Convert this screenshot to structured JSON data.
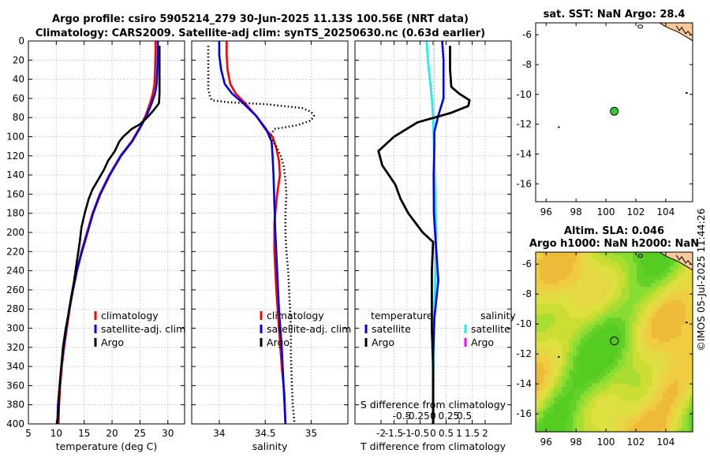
{
  "header": {
    "title1": "Argo profile: csiro 5905214_279 30-Jun-2025 11.13S 100.56E (NRT data)",
    "title2": "Climatology: CARS2009. Satellite-adj clim: synTS_20250630.nc (0.63d earlier)"
  },
  "colors": {
    "climatology": "#ff0000",
    "satellite": "#0000ee",
    "argo": "#000000",
    "sal_satellite": "#22eeee",
    "sal_argo": "#ff00ff",
    "grid": "#c8c8c8"
  },
  "depth_axis": {
    "ticks": [
      "0",
      "20",
      "40",
      "60",
      "80",
      "100",
      "120",
      "140",
      "160",
      "180",
      "200",
      "220",
      "240",
      "260",
      "280",
      "300",
      "320",
      "340",
      "360",
      "380",
      "400"
    ]
  },
  "chart_data": [
    {
      "type": "line",
      "id": "temperature",
      "xlabel": "temperature (deg C)",
      "ylabel": "depth",
      "xlim": [
        5,
        33
      ],
      "ylim": [
        0,
        400
      ],
      "xticks": [
        "5",
        "10",
        "15",
        "20",
        "25",
        "30"
      ],
      "xtick_values": [
        5,
        10,
        15,
        20,
        25,
        30
      ],
      "legend": [
        "climatology",
        "satellite-adj. clim",
        "Argo"
      ],
      "series": [
        {
          "name": "climatology",
          "points": [
            [
              27.8,
              0
            ],
            [
              27.8,
              10
            ],
            [
              27.7,
              30
            ],
            [
              27.6,
              45
            ],
            [
              27.3,
              55
            ],
            [
              26.8,
              65
            ],
            [
              26,
              78
            ],
            [
              25,
              90
            ],
            [
              23.5,
              105
            ],
            [
              21.5,
              120
            ],
            [
              19.5,
              140
            ],
            [
              17.8,
              160
            ],
            [
              16.5,
              180
            ],
            [
              15.5,
              200
            ],
            [
              14.5,
              220
            ],
            [
              13.7,
              240
            ],
            [
              13,
              260
            ],
            [
              12.4,
              280
            ],
            [
              11.9,
              300
            ],
            [
              11.4,
              320
            ],
            [
              11,
              340
            ],
            [
              10.7,
              360
            ],
            [
              10.5,
              380
            ],
            [
              10.4,
              400
            ]
          ]
        },
        {
          "name": "satellite-adj. clim",
          "points": [
            [
              28.2,
              0
            ],
            [
              28.2,
              10
            ],
            [
              28.1,
              30
            ],
            [
              28,
              45
            ],
            [
              27.7,
              55
            ],
            [
              27.1,
              65
            ],
            [
              26.2,
              78
            ],
            [
              25.1,
              90
            ],
            [
              23.6,
              105
            ],
            [
              21.6,
              120
            ],
            [
              19.6,
              140
            ],
            [
              17.9,
              160
            ],
            [
              16.6,
              180
            ],
            [
              15.6,
              200
            ],
            [
              14.6,
              220
            ],
            [
              13.7,
              240
            ],
            [
              13,
              260
            ],
            [
              12.3,
              280
            ],
            [
              11.8,
              300
            ],
            [
              11.3,
              320
            ],
            [
              10.9,
              340
            ],
            [
              10.6,
              360
            ],
            [
              10.3,
              380
            ],
            [
              10.2,
              400
            ]
          ]
        },
        {
          "name": "Argo",
          "points": [
            [
              28.5,
              5
            ],
            [
              28.5,
              20
            ],
            [
              28.5,
              40
            ],
            [
              28.5,
              55
            ],
            [
              28.4,
              65
            ],
            [
              27.5,
              72
            ],
            [
              26.3,
              80
            ],
            [
              25,
              87
            ],
            [
              23.5,
              92
            ],
            [
              22,
              100
            ],
            [
              21.3,
              105
            ],
            [
              20.5,
              115
            ],
            [
              19.3,
              125
            ],
            [
              18.5,
              135
            ],
            [
              17.5,
              145
            ],
            [
              16.5,
              155
            ],
            [
              15.8,
              165
            ],
            [
              15.1,
              180
            ],
            [
              14.5,
              195
            ],
            [
              14.2,
              210
            ],
            [
              13.7,
              230
            ],
            [
              13.2,
              250
            ],
            [
              12.6,
              270
            ],
            [
              12.2,
              285
            ],
            [
              11.7,
              300
            ],
            [
              11.2,
              320
            ],
            [
              10.9,
              340
            ],
            [
              10.6,
              360
            ],
            [
              10.4,
              380
            ],
            [
              10.2,
              400
            ]
          ]
        }
      ]
    },
    {
      "type": "line",
      "id": "salinity",
      "xlabel": "salinity",
      "xlim": [
        33.7,
        35.4
      ],
      "ylim": [
        0,
        400
      ],
      "xticks": [
        "34",
        "34.5",
        "35"
      ],
      "xtick_values": [
        34,
        34.5,
        35
      ],
      "legend": [
        "climatology",
        "satellite-adj. clim",
        "Argo"
      ],
      "series": [
        {
          "name": "climatology",
          "points": [
            [
              34.08,
              0
            ],
            [
              34.08,
              15
            ],
            [
              34.09,
              30
            ],
            [
              34.12,
              45
            ],
            [
              34.18,
              55
            ],
            [
              34.28,
              65
            ],
            [
              34.4,
              78
            ],
            [
              34.5,
              92
            ],
            [
              34.58,
              100
            ],
            [
              34.62,
              112
            ],
            [
              34.65,
              125
            ],
            [
              34.66,
              140
            ],
            [
              34.63,
              160
            ],
            [
              34.6,
              190
            ],
            [
              34.6,
              220
            ],
            [
              34.62,
              260
            ],
            [
              34.65,
              300
            ],
            [
              34.68,
              340
            ],
            [
              34.71,
              370
            ],
            [
              34.72,
              400
            ]
          ]
        },
        {
          "name": "satellite-adj. clim",
          "points": [
            [
              34.0,
              0
            ],
            [
              34.0,
              15
            ],
            [
              34.02,
              30
            ],
            [
              34.06,
              45
            ],
            [
              34.14,
              55
            ],
            [
              34.26,
              65
            ],
            [
              34.4,
              78
            ],
            [
              34.51,
              92
            ],
            [
              34.57,
              105
            ],
            [
              34.58,
              120
            ],
            [
              34.59,
              140
            ],
            [
              34.6,
              170
            ],
            [
              34.61,
              200
            ],
            [
              34.63,
              240
            ],
            [
              34.65,
              280
            ],
            [
              34.68,
              320
            ],
            [
              34.7,
              360
            ],
            [
              34.72,
              400
            ]
          ]
        },
        {
          "name": "Argo",
          "points": [
            [
              33.88,
              5
            ],
            [
              33.88,
              20
            ],
            [
              33.88,
              35
            ],
            [
              33.88,
              50
            ],
            [
              33.9,
              58
            ],
            [
              33.92,
              62
            ],
            [
              34.1,
              64
            ],
            [
              34.5,
              66
            ],
            [
              34.9,
              70
            ],
            [
              35.0,
              74
            ],
            [
              35.03,
              78
            ],
            [
              35.0,
              83
            ],
            [
              34.85,
              88
            ],
            [
              34.6,
              92
            ],
            [
              34.55,
              100
            ],
            [
              34.62,
              110
            ],
            [
              34.67,
              120
            ],
            [
              34.7,
              130
            ],
            [
              34.72,
              145
            ],
            [
              34.73,
              160
            ],
            [
              34.72,
              180
            ],
            [
              34.72,
              200
            ],
            [
              34.73,
              220
            ],
            [
              34.75,
              240
            ],
            [
              34.76,
              260
            ],
            [
              34.77,
              280
            ],
            [
              34.78,
              300
            ],
            [
              34.78,
              330
            ],
            [
              34.79,
              360
            ],
            [
              34.8,
              380
            ],
            [
              34.82,
              400
            ]
          ]
        }
      ]
    },
    {
      "type": "line",
      "id": "difference",
      "xlabel": "T difference from climatology",
      "xlabel_top": "S difference from climatology",
      "xlim": [
        -3,
        3
      ],
      "ylim": [
        0,
        400
      ],
      "xticks": [
        "-2",
        "-1.5",
        "-1",
        "-0.5",
        "0",
        "0.5",
        "1",
        "1.5",
        "2"
      ],
      "xtick_values": [
        -2,
        -1.5,
        -1,
        -0.5,
        0,
        0.5,
        1,
        1.5,
        2
      ],
      "sticks": [
        "-0.5",
        "-0.25",
        "0",
        "0.25",
        "0.5"
      ],
      "stick_values": [
        -1.2,
        -0.6,
        0,
        0.6,
        1.2
      ],
      "legend_headers": [
        "temperature",
        "salinity"
      ],
      "legend_left": [
        "satellite",
        "Argo"
      ],
      "legend_right": [
        "satellite",
        "Argo"
      ],
      "series": [
        {
          "name": "T satellite",
          "points": [
            [
              0.35,
              0
            ],
            [
              0.4,
              20
            ],
            [
              0.4,
              40
            ],
            [
              0.4,
              60
            ],
            [
              0.2,
              78
            ],
            [
              0.05,
              95
            ],
            [
              0.05,
              110
            ],
            [
              0.02,
              140
            ],
            [
              0.03,
              180
            ],
            [
              0.1,
              210
            ],
            [
              0.2,
              250
            ],
            [
              0.05,
              290
            ],
            [
              0,
              330
            ],
            [
              0,
              400
            ]
          ]
        },
        {
          "name": "T Argo",
          "points": [
            [
              0.65,
              5
            ],
            [
              0.65,
              30
            ],
            [
              0.7,
              48
            ],
            [
              1.0,
              55
            ],
            [
              1.4,
              62
            ],
            [
              1.35,
              68
            ],
            [
              0.7,
              75
            ],
            [
              -0.6,
              85
            ],
            [
              -1.5,
              100
            ],
            [
              -2.1,
              115
            ],
            [
              -1.95,
              130
            ],
            [
              -1.7,
              140
            ],
            [
              -1.45,
              150
            ],
            [
              -1.25,
              165
            ],
            [
              -0.95,
              180
            ],
            [
              -0.4,
              200
            ],
            [
              0.0,
              210
            ],
            [
              -0.05,
              240
            ],
            [
              -0.05,
              270
            ],
            [
              -0.05,
              300
            ],
            [
              0,
              340
            ],
            [
              0,
              400
            ]
          ]
        },
        {
          "name": "S satellite",
          "points": [
            [
              -0.25,
              0
            ],
            [
              -0.2,
              20
            ],
            [
              -0.12,
              40
            ],
            [
              -0.05,
              60
            ],
            [
              0,
              80
            ],
            [
              0.02,
              100
            ],
            [
              0.05,
              130
            ],
            [
              0.08,
              160
            ],
            [
              0.12,
              200
            ],
            [
              0.1,
              240
            ],
            [
              0.05,
              280
            ],
            [
              0.02,
              320
            ],
            [
              0,
              360
            ],
            [
              0,
              400
            ]
          ]
        },
        {
          "name": "S Argo",
          "points": [
            [
              0.05,
              5
            ],
            [
              0.05,
              400
            ]
          ]
        }
      ]
    },
    {
      "type": "heatmap",
      "id": "sst-map",
      "title": "sat. SST: NaN Argo: 28.4",
      "xlim": [
        95.3,
        105.8
      ],
      "ylim": [
        -17.2,
        -5.2
      ],
      "xticks": [
        "96",
        "98",
        "100",
        "102",
        "104"
      ],
      "xtick_values": [
        96,
        98,
        100,
        102,
        104
      ],
      "yticks": [
        "-6",
        "-8",
        "-10",
        "-12",
        "-14",
        "-16"
      ],
      "ytick_values": [
        -6,
        -8,
        -10,
        -12,
        -14,
        -16
      ],
      "marker": {
        "lon": 100.56,
        "lat": -11.13,
        "fill": "#33cc33"
      }
    },
    {
      "type": "heatmap",
      "id": "sla-map",
      "title1": "Altim. SLA: 0.046",
      "title2": "Argo h1000: NaN h2000: NaN",
      "xlim": [
        95.3,
        105.8
      ],
      "ylim": [
        -17.2,
        -5.2
      ],
      "xticks": [
        "96",
        "98",
        "100",
        "102",
        "104"
      ],
      "xtick_values": [
        96,
        98,
        100,
        102,
        104
      ],
      "yticks": [
        "-6",
        "-8",
        "-10",
        "-12",
        "-14",
        "-16"
      ],
      "ytick_values": [
        -6,
        -8,
        -10,
        -12,
        -14,
        -16
      ],
      "marker": {
        "lon": 100.56,
        "lat": -11.13,
        "fill": "none"
      }
    }
  ],
  "footer": {
    "stamp": "©IMOS 05-Jul-2025 11:44:26"
  }
}
